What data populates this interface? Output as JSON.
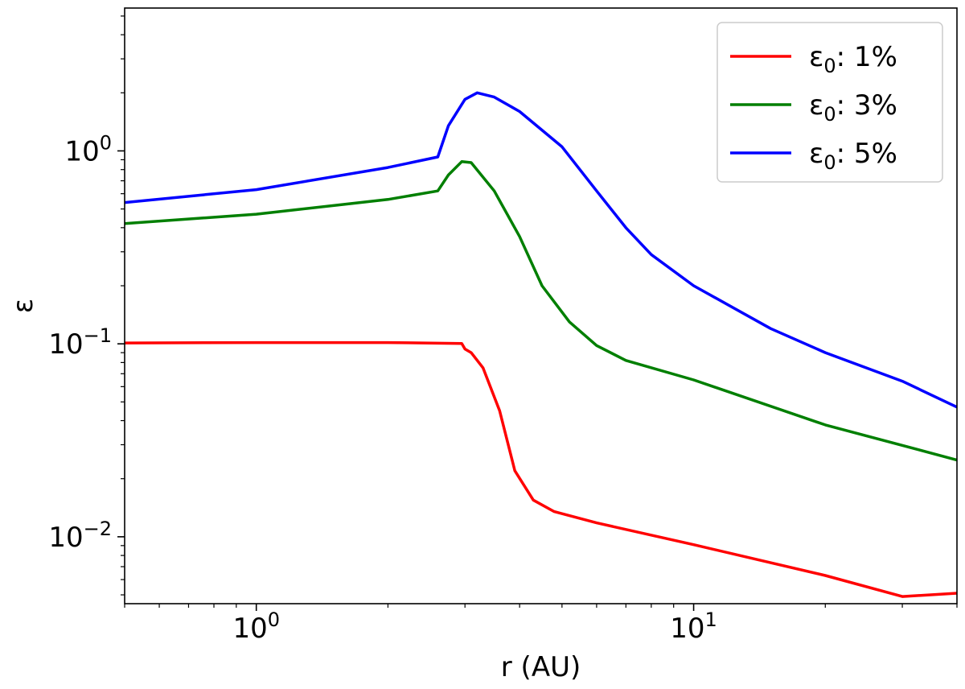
{
  "chart_data": {
    "type": "line",
    "xlabel": "r (AU)",
    "ylabel": "ε",
    "xscale": "log",
    "yscale": "log",
    "xlim": [
      0.5,
      40
    ],
    "ylim": [
      0.0045,
      5.5
    ],
    "grid": false,
    "legend_position": "top-right",
    "x_ticks": [
      {
        "value": 1,
        "base": "10",
        "exp": "0"
      },
      {
        "value": 10,
        "base": "10",
        "exp": "1"
      }
    ],
    "y_ticks": [
      {
        "value": 1,
        "base": "10",
        "exp": "0"
      },
      {
        "value": 0.1,
        "base": "10",
        "exp": "−1"
      },
      {
        "value": 0.01,
        "base": "10",
        "exp": "−2"
      }
    ],
    "series": [
      {
        "name": "ε0: 1%",
        "legend_symbol": "ε",
        "legend_sub": "0",
        "legend_value": ": 1%",
        "color": "#ff0000",
        "points": [
          [
            0.5,
            0.101
          ],
          [
            1.0,
            0.1015
          ],
          [
            2.0,
            0.1015
          ],
          [
            2.95,
            0.1005
          ],
          [
            3.0,
            0.094
          ],
          [
            3.1,
            0.09
          ],
          [
            3.3,
            0.075
          ],
          [
            3.6,
            0.045
          ],
          [
            3.9,
            0.022
          ],
          [
            4.3,
            0.0155
          ],
          [
            4.8,
            0.0135
          ],
          [
            6,
            0.0118
          ],
          [
            10,
            0.0091
          ],
          [
            20,
            0.0063
          ],
          [
            30,
            0.0049
          ],
          [
            40,
            0.0051
          ]
        ]
      },
      {
        "name": "ε0: 3%",
        "legend_symbol": "ε",
        "legend_sub": "0",
        "legend_value": ": 3%",
        "color": "#007f00",
        "points": [
          [
            0.5,
            0.42
          ],
          [
            1.0,
            0.47
          ],
          [
            2.0,
            0.56
          ],
          [
            2.6,
            0.62
          ],
          [
            2.75,
            0.75
          ],
          [
            2.95,
            0.88
          ],
          [
            3.1,
            0.87
          ],
          [
            3.5,
            0.62
          ],
          [
            4.0,
            0.36
          ],
          [
            4.5,
            0.2
          ],
          [
            5.2,
            0.13
          ],
          [
            6,
            0.098
          ],
          [
            7,
            0.082
          ],
          [
            10,
            0.065
          ],
          [
            20,
            0.038
          ],
          [
            40,
            0.025
          ]
        ]
      },
      {
        "name": "ε0: 5%",
        "legend_symbol": "ε",
        "legend_sub": "0",
        "legend_value": ": 5%",
        "color": "#0000ff",
        "points": [
          [
            0.5,
            0.54
          ],
          [
            1.0,
            0.63
          ],
          [
            2.0,
            0.82
          ],
          [
            2.6,
            0.93
          ],
          [
            2.75,
            1.35
          ],
          [
            3.0,
            1.85
          ],
          [
            3.2,
            2.0
          ],
          [
            3.5,
            1.9
          ],
          [
            4.0,
            1.6
          ],
          [
            5,
            1.05
          ],
          [
            6,
            0.62
          ],
          [
            7,
            0.4
          ],
          [
            8,
            0.29
          ],
          [
            10,
            0.2
          ],
          [
            15,
            0.12
          ],
          [
            20,
            0.09
          ],
          [
            30,
            0.064
          ],
          [
            40,
            0.047
          ]
        ]
      }
    ]
  }
}
